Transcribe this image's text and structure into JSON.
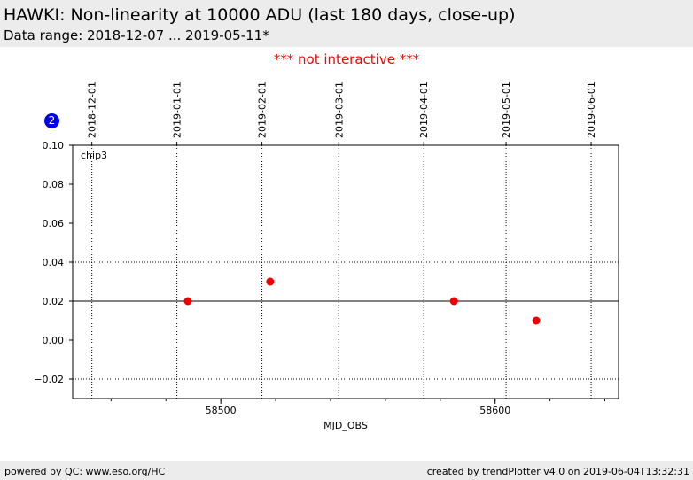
{
  "header": {
    "title": "HAWKI: Non-linearity at 10000 ADU (last 180 days, close-up)",
    "subtitle": "Data range: 2018-12-07 ... 2019-05-11*"
  },
  "notice": "*** not interactive ***",
  "badge": "2",
  "footer": {
    "left": "powered by QC: www.eso.org/HC",
    "right": "created by trendPlotter v4.0 on 2019-06-04T13:32:31"
  },
  "colors": {
    "points": "#ee0000",
    "badge": "#0000ee",
    "notice": "#ff0000",
    "header_bg": "#ececec"
  },
  "chart_data": {
    "type": "scatter",
    "panel_label": "chip3",
    "xlabel": "MJD_OBS",
    "ylabel": "",
    "xlim": [
      58446,
      58645
    ],
    "ylim": [
      -0.03,
      0.1
    ],
    "x_ticks": [
      58500,
      58600
    ],
    "x_minor_step": 20,
    "y_ticks": [
      -0.02,
      0.0,
      0.02,
      0.04,
      0.06,
      0.08,
      0.1
    ],
    "y_tick_labels": [
      "−0.02",
      "0.00",
      "0.02",
      "0.04",
      "0.06",
      "0.08",
      "0.10"
    ],
    "reference_line": 0.02,
    "h_dotted_lines": [
      0.04,
      -0.02
    ],
    "date_ticks": [
      {
        "label": "2018-12-01",
        "mjd": 58453
      },
      {
        "label": "2019-01-01",
        "mjd": 58484
      },
      {
        "label": "2019-02-01",
        "mjd": 58515
      },
      {
        "label": "2019-03-01",
        "mjd": 58543
      },
      {
        "label": "2019-04-01",
        "mjd": 58574
      },
      {
        "label": "2019-05-01",
        "mjd": 58604
      },
      {
        "label": "2019-06-01",
        "mjd": 58635
      }
    ],
    "points": [
      {
        "x": 58488,
        "y": 0.02
      },
      {
        "x": 58518,
        "y": 0.03
      },
      {
        "x": 58585,
        "y": 0.02
      },
      {
        "x": 58615,
        "y": 0.01
      }
    ],
    "grid": false,
    "legend": "none"
  }
}
